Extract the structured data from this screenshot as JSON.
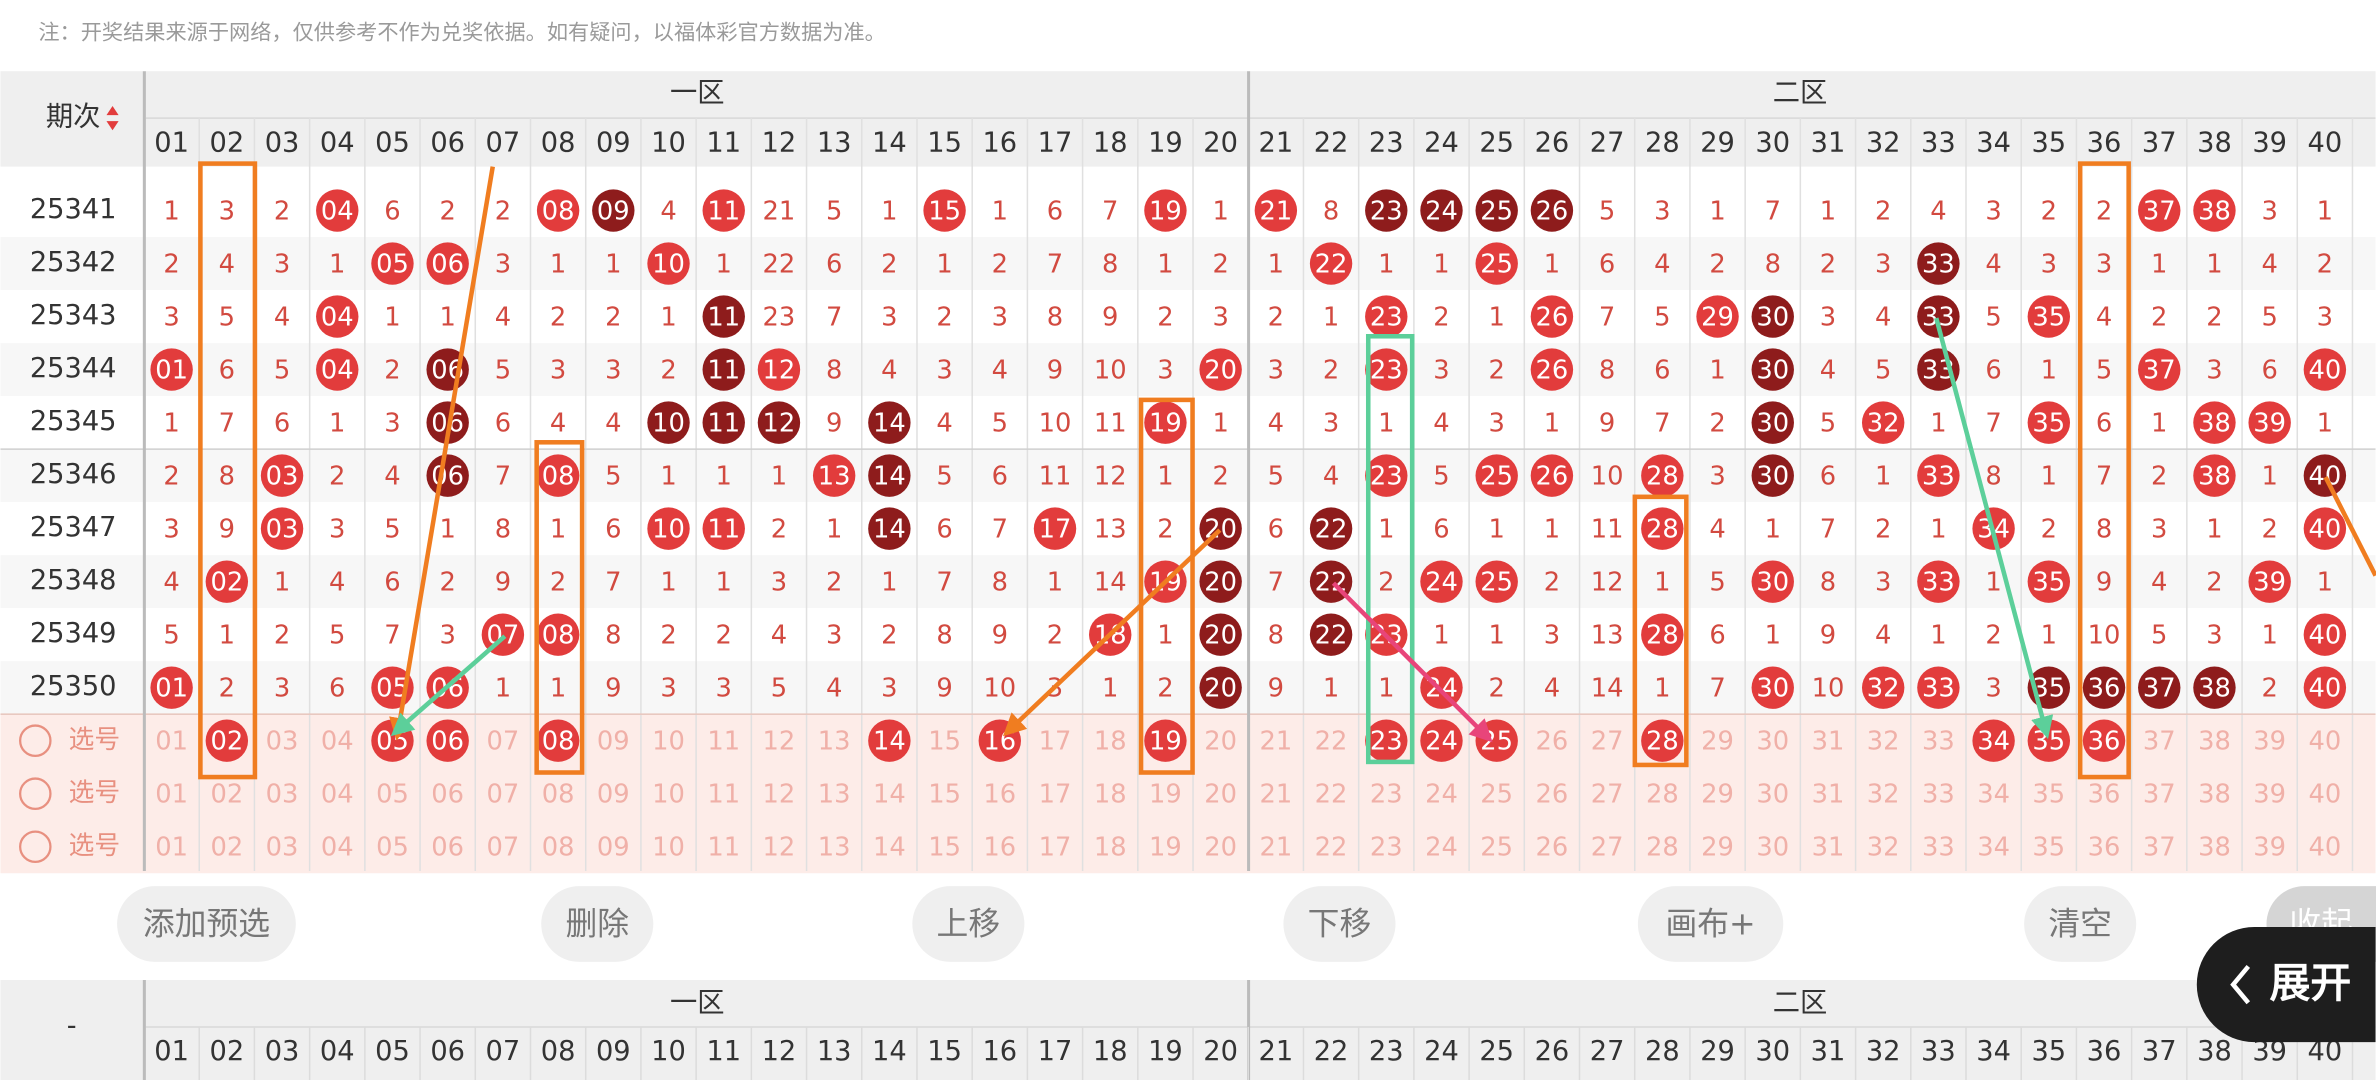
{
  "notice": "注：开奖结果来源于网络，仅供参考不作为兑奖依据。如有疑问，以福体彩官方数据为准。",
  "ball_colors": {
    "red": "#e23c3c",
    "dark": "#8e1c1c"
  },
  "table": {
    "issue_header": "期次",
    "zones": [
      "一区",
      "二区"
    ],
    "columns": [
      "01",
      "02",
      "03",
      "04",
      "05",
      "06",
      "07",
      "08",
      "09",
      "10",
      "11",
      "12",
      "13",
      "14",
      "15",
      "16",
      "17",
      "18",
      "19",
      "20",
      "21",
      "22",
      "23",
      "24",
      "25",
      "26",
      "27",
      "28",
      "29",
      "30",
      "31",
      "32",
      "33",
      "34",
      "35",
      "36",
      "37",
      "38",
      "39",
      "40"
    ],
    "rows": [
      {
        "issue": "25341",
        "cells": [
          "1",
          "3",
          "2",
          {
            "t": "04",
            "b": "red"
          },
          "6",
          "2",
          "2",
          {
            "t": "08",
            "b": "red"
          },
          {
            "t": "09",
            "b": "dark"
          },
          "4",
          {
            "t": "11",
            "b": "red"
          },
          "21",
          "5",
          "1",
          {
            "t": "15",
            "b": "red"
          },
          "1",
          "6",
          "7",
          {
            "t": "19",
            "b": "red"
          },
          "1",
          {
            "t": "21",
            "b": "red"
          },
          "8",
          {
            "t": "23",
            "b": "dark"
          },
          {
            "t": "24",
            "b": "dark"
          },
          {
            "t": "25",
            "b": "dark"
          },
          {
            "t": "26",
            "b": "dark"
          },
          "5",
          "3",
          "1",
          "7",
          "1",
          "2",
          "4",
          "3",
          "2",
          "2",
          {
            "t": "37",
            "b": "red"
          },
          {
            "t": "38",
            "b": "red"
          },
          "3",
          "1"
        ]
      },
      {
        "issue": "25342",
        "cells": [
          "2",
          "4",
          "3",
          "1",
          {
            "t": "05",
            "b": "red"
          },
          {
            "t": "06",
            "b": "red"
          },
          "3",
          "1",
          "1",
          {
            "t": "10",
            "b": "red"
          },
          "1",
          "22",
          "6",
          "2",
          "1",
          "2",
          "7",
          "8",
          "1",
          "2",
          "1",
          {
            "t": "22",
            "b": "red"
          },
          "1",
          "1",
          {
            "t": "25",
            "b": "red"
          },
          "1",
          "6",
          "4",
          "2",
          "8",
          "2",
          "3",
          {
            "t": "33",
            "b": "dark"
          },
          "4",
          "3",
          "3",
          "1",
          "1",
          "4",
          "2"
        ]
      },
      {
        "issue": "25343",
        "cells": [
          "3",
          "5",
          "4",
          {
            "t": "04",
            "b": "red"
          },
          "1",
          "1",
          "4",
          "2",
          "2",
          "1",
          {
            "t": "11",
            "b": "dark"
          },
          "23",
          "7",
          "3",
          "2",
          "3",
          "8",
          "9",
          "2",
          "3",
          "2",
          "1",
          {
            "t": "23",
            "b": "red"
          },
          "2",
          "1",
          {
            "t": "26",
            "b": "red"
          },
          "7",
          "5",
          {
            "t": "29",
            "b": "red"
          },
          {
            "t": "30",
            "b": "dark"
          },
          "3",
          "4",
          {
            "t": "33",
            "b": "dark"
          },
          "5",
          {
            "t": "35",
            "b": "red"
          },
          "4",
          "2",
          "2",
          "5",
          "3"
        ]
      },
      {
        "issue": "25344",
        "cells": [
          {
            "t": "01",
            "b": "red"
          },
          "6",
          "5",
          {
            "t": "04",
            "b": "red"
          },
          "2",
          {
            "t": "06",
            "b": "dark"
          },
          "5",
          "3",
          "3",
          "2",
          {
            "t": "11",
            "b": "dark"
          },
          {
            "t": "12",
            "b": "red"
          },
          "8",
          "4",
          "3",
          "4",
          "9",
          "10",
          "3",
          {
            "t": "20",
            "b": "red"
          },
          "3",
          "2",
          {
            "t": "23",
            "b": "red"
          },
          "3",
          "2",
          {
            "t": "26",
            "b": "red"
          },
          "8",
          "6",
          "1",
          {
            "t": "30",
            "b": "dark"
          },
          "4",
          "5",
          {
            "t": "33",
            "b": "dark"
          },
          "6",
          "1",
          "5",
          {
            "t": "37",
            "b": "red"
          },
          "3",
          "6",
          {
            "t": "40",
            "b": "red"
          }
        ]
      },
      {
        "issue": "25345",
        "cells": [
          "1",
          "7",
          "6",
          "1",
          "3",
          {
            "t": "06",
            "b": "dark"
          },
          "6",
          "4",
          "4",
          {
            "t": "10",
            "b": "dark"
          },
          {
            "t": "11",
            "b": "dark"
          },
          {
            "t": "12",
            "b": "dark"
          },
          "9",
          {
            "t": "14",
            "b": "dark"
          },
          "4",
          "5",
          "10",
          "11",
          {
            "t": "19",
            "b": "red"
          },
          "1",
          "4",
          "3",
          "1",
          "4",
          "3",
          "1",
          "9",
          "7",
          "2",
          {
            "t": "30",
            "b": "dark"
          },
          "5",
          {
            "t": "32",
            "b": "red"
          },
          "1",
          "7",
          {
            "t": "35",
            "b": "red"
          },
          "6",
          "1",
          {
            "t": "38",
            "b": "red"
          },
          {
            "t": "39",
            "b": "red"
          },
          "1"
        ]
      },
      {
        "issue": "25346",
        "cells": [
          "2",
          "8",
          {
            "t": "03",
            "b": "red"
          },
          "2",
          "4",
          {
            "t": "06",
            "b": "dark"
          },
          "7",
          {
            "t": "08",
            "b": "red"
          },
          "5",
          "1",
          "1",
          "1",
          {
            "t": "13",
            "b": "red"
          },
          {
            "t": "14",
            "b": "dark"
          },
          "5",
          "6",
          "11",
          "12",
          "1",
          "2",
          "5",
          "4",
          {
            "t": "23",
            "b": "red"
          },
          "5",
          {
            "t": "25",
            "b": "red"
          },
          {
            "t": "26",
            "b": "red"
          },
          "10",
          {
            "t": "28",
            "b": "red"
          },
          "3",
          {
            "t": "30",
            "b": "dark"
          },
          "6",
          "1",
          {
            "t": "33",
            "b": "red"
          },
          "8",
          "1",
          "7",
          "2",
          {
            "t": "38",
            "b": "red"
          },
          "1",
          {
            "t": "40",
            "b": "dark"
          }
        ]
      },
      {
        "issue": "25347",
        "cells": [
          "3",
          "9",
          {
            "t": "03",
            "b": "red"
          },
          "3",
          "5",
          "1",
          "8",
          "1",
          "6",
          {
            "t": "10",
            "b": "red"
          },
          {
            "t": "11",
            "b": "red"
          },
          "2",
          "1",
          {
            "t": "14",
            "b": "dark"
          },
          "6",
          "7",
          {
            "t": "17",
            "b": "red"
          },
          "13",
          "2",
          {
            "t": "20",
            "b": "dark"
          },
          "6",
          {
            "t": "22",
            "b": "dark"
          },
          "1",
          "6",
          "1",
          "1",
          "11",
          {
            "t": "28",
            "b": "red"
          },
          "4",
          "1",
          "7",
          "2",
          "1",
          {
            "t": "34",
            "b": "red"
          },
          "2",
          "8",
          "3",
          "1",
          "2",
          {
            "t": "40",
            "b": "red"
          }
        ]
      },
      {
        "issue": "25348",
        "cells": [
          "4",
          {
            "t": "02",
            "b": "red"
          },
          "1",
          "4",
          "6",
          "2",
          "9",
          "2",
          "7",
          "1",
          "1",
          "3",
          "2",
          "1",
          "7",
          "8",
          "1",
          "14",
          {
            "t": "19",
            "b": "red"
          },
          {
            "t": "20",
            "b": "dark"
          },
          "7",
          {
            "t": "22",
            "b": "dark"
          },
          "2",
          {
            "t": "24",
            "b": "red"
          },
          {
            "t": "25",
            "b": "red"
          },
          "2",
          "12",
          "1",
          "5",
          {
            "t": "30",
            "b": "red"
          },
          "8",
          "3",
          {
            "t": "33",
            "b": "red"
          },
          "1",
          {
            "t": "35",
            "b": "red"
          },
          "9",
          "4",
          "2",
          {
            "t": "39",
            "b": "red"
          },
          "1"
        ]
      },
      {
        "issue": "25349",
        "cells": [
          "5",
          "1",
          "2",
          "5",
          "7",
          "3",
          {
            "t": "07",
            "b": "red"
          },
          {
            "t": "08",
            "b": "red"
          },
          "8",
          "2",
          "2",
          "4",
          "3",
          "2",
          "8",
          "9",
          "2",
          {
            "t": "18",
            "b": "red"
          },
          "1",
          {
            "t": "20",
            "b": "dark"
          },
          "8",
          {
            "t": "22",
            "b": "dark"
          },
          {
            "t": "23",
            "b": "red"
          },
          "1",
          "1",
          "3",
          "13",
          {
            "t": "28",
            "b": "red"
          },
          "6",
          "1",
          "9",
          "4",
          "1",
          "2",
          "1",
          "10",
          "5",
          "3",
          "1",
          {
            "t": "40",
            "b": "red"
          }
        ]
      },
      {
        "issue": "25350",
        "cells": [
          {
            "t": "01",
            "b": "red"
          },
          "2",
          "3",
          "6",
          {
            "t": "05",
            "b": "red"
          },
          {
            "t": "06",
            "b": "red"
          },
          "1",
          "1",
          "9",
          "3",
          "3",
          "5",
          "4",
          "3",
          "9",
          "10",
          "3",
          "1",
          "2",
          {
            "t": "20",
            "b": "dark"
          },
          "9",
          "1",
          "1",
          {
            "t": "24",
            "b": "red"
          },
          "2",
          "4",
          "14",
          "1",
          "7",
          {
            "t": "30",
            "b": "red"
          },
          "10",
          {
            "t": "32",
            "b": "red"
          },
          {
            "t": "33",
            "b": "red"
          },
          "3",
          {
            "t": "35",
            "b": "dark"
          },
          {
            "t": "36",
            "b": "dark"
          },
          {
            "t": "37",
            "b": "dark"
          },
          {
            "t": "38",
            "b": "dark"
          },
          "2",
          {
            "t": "40",
            "b": "red"
          }
        ]
      }
    ],
    "pick_rows": [
      {
        "label": "选号",
        "picked": [
          "02",
          "05",
          "06",
          "08",
          "14",
          "16",
          "19",
          "23",
          "24",
          "25",
          "28",
          "34",
          "35",
          "36"
        ]
      },
      {
        "label": "选号",
        "picked": []
      },
      {
        "label": "选号",
        "picked": []
      }
    ]
  },
  "buttons": [
    "添加预选",
    "删除",
    "上移",
    "下移",
    "画布+",
    "清空"
  ],
  "collapse_button": "收起",
  "expand_button": "展开",
  "bottom_header": {
    "issue_header": "-"
  }
}
